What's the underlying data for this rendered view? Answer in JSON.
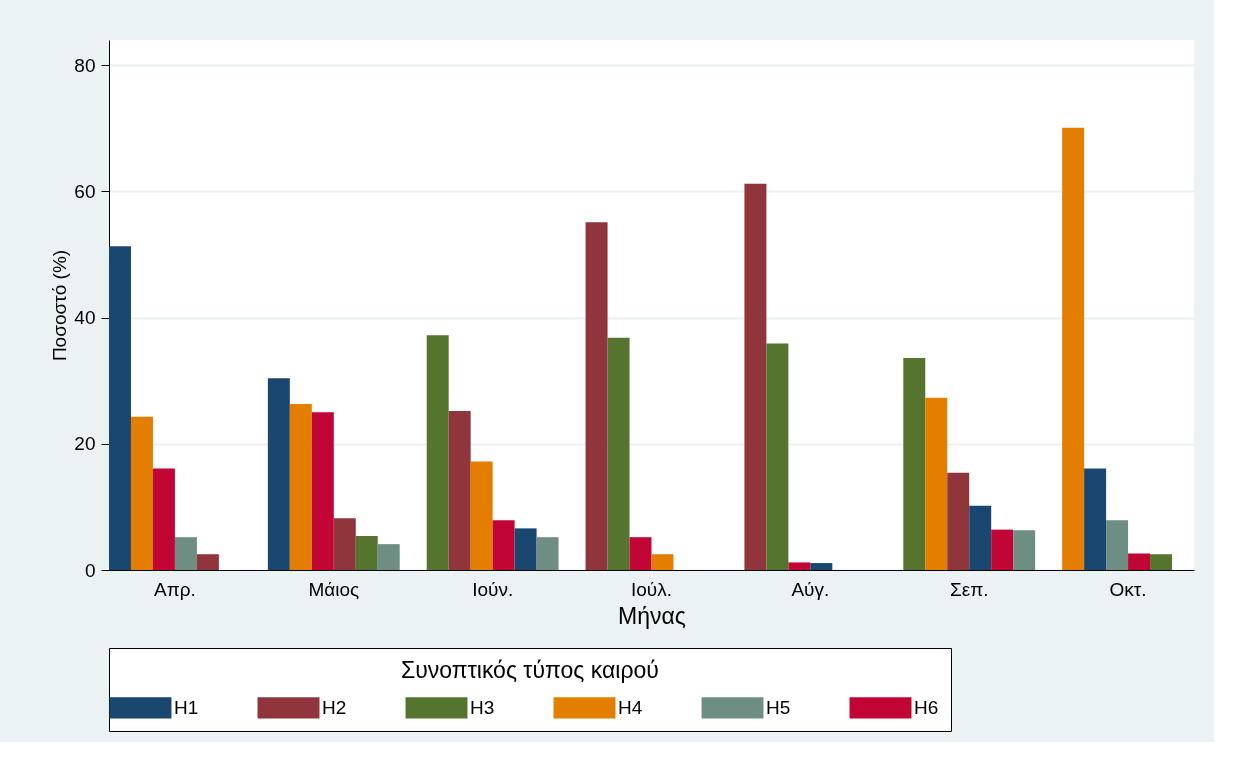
{
  "chart_data": {
    "type": "bar",
    "xlabel": "Μήνας",
    "ylabel": "Ποσοστό (%)",
    "legend_title": "Συνοπτικός τύπος καιρού",
    "categories": [
      "Απρ.",
      "Μάιος",
      "Ιούν.",
      "Ιούλ.",
      "Αύγ.",
      "Σεπ.",
      "Οκτ."
    ],
    "series": [
      {
        "name": "H1",
        "color": "#1a476f",
        "values": [
          51.3,
          30.4,
          6.6,
          null,
          1.1,
          10.2,
          16.1
        ]
      },
      {
        "name": "H2",
        "color": "#90353b",
        "values": [
          2.5,
          8.2,
          25.2,
          55.1,
          61.2,
          15.4,
          null
        ]
      },
      {
        "name": "H3",
        "color": "#55752f",
        "values": [
          null,
          5.4,
          37.2,
          36.8,
          35.9,
          33.6,
          2.5
        ]
      },
      {
        "name": "H4",
        "color": "#e37e00",
        "values": [
          24.3,
          26.3,
          17.2,
          2.5,
          null,
          27.3,
          70.1
        ]
      },
      {
        "name": "H5",
        "color": "#6e8e84",
        "values": [
          5.2,
          4.1,
          5.2,
          null,
          null,
          6.3,
          7.9
        ]
      },
      {
        "name": "H6",
        "color": "#c10534",
        "values": [
          16.1,
          25.0,
          7.9,
          5.2,
          1.2,
          6.4,
          2.6
        ]
      }
    ],
    "ylim": [
      0,
      84
    ],
    "yticks": [
      0,
      20,
      40,
      60,
      80
    ],
    "grid": "y",
    "legend": "bottom"
  }
}
